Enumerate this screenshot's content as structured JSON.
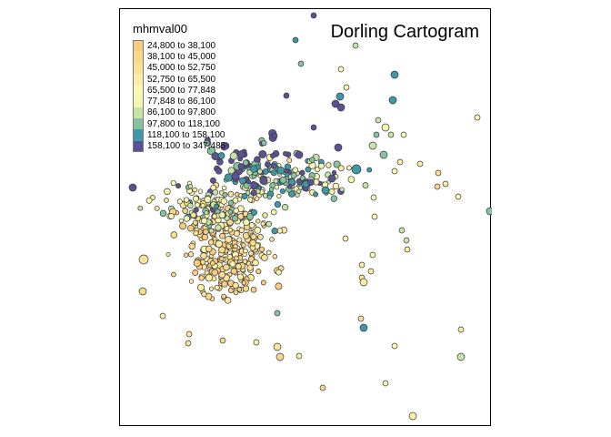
{
  "map": {
    "title": "Dorling Cartogram",
    "legend_title": "mhmval00",
    "legend": [
      {
        "label": "24,800 to 38,100",
        "color": "#F9CC7E"
      },
      {
        "label": "38,100 to 45,000",
        "color": "#FAD888"
      },
      {
        "label": "45,000 to 52,750",
        "color": "#FBE295"
      },
      {
        "label": "52,750 to 65,500",
        "color": "#FBEDA3"
      },
      {
        "label": "65,500 to 77,848",
        "color": "#FBF6B0"
      },
      {
        "label": "77,848 to 86,100",
        "color": "#F4F7B2"
      },
      {
        "label": "86,100 to 97,800",
        "color": "#C6E4A6"
      },
      {
        "label": "97,800 to 118,100",
        "color": "#86C2A0"
      },
      {
        "label": "118,100 to 158,100",
        "color": "#3E98A6"
      },
      {
        "label": "158,100 to 347,485",
        "color": "#5B5295"
      }
    ]
  }
}
